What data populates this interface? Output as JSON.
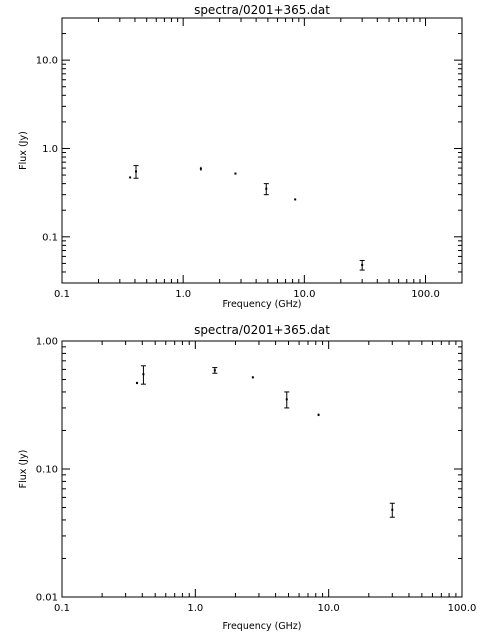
{
  "chart_data": [
    {
      "type": "scatter",
      "title": "spectra/0201+365.dat",
      "xlabel": "Frequency (GHz)",
      "ylabel": "Flux (Jy)",
      "xscale": "log",
      "yscale": "log",
      "xlim": [
        0.1,
        200
      ],
      "ylim": [
        0.03,
        30
      ],
      "xticks": [
        {
          "value": 0.1,
          "label": "0.1"
        },
        {
          "value": 1,
          "label": "1.0"
        },
        {
          "value": 10,
          "label": "10.0"
        },
        {
          "value": 100,
          "label": "100.0"
        }
      ],
      "yticks": [
        {
          "value": 0.1,
          "label": "0.1"
        },
        {
          "value": 1,
          "label": "1.0"
        },
        {
          "value": 10,
          "label": "10.0"
        }
      ],
      "grid": false,
      "points": [
        {
          "x": 0.365,
          "y": 0.47,
          "err": 0.01
        },
        {
          "x": 0.408,
          "y": 0.55,
          "err": 0.09
        },
        {
          "x": 1.4,
          "y": 0.59,
          "err": 0.03
        },
        {
          "x": 2.7,
          "y": 0.52,
          "err": 0.01
        },
        {
          "x": 4.85,
          "y": 0.35,
          "err": 0.05
        },
        {
          "x": 8.4,
          "y": 0.265,
          "err": 0.006
        },
        {
          "x": 30,
          "y": 0.048,
          "err": 0.006
        }
      ]
    },
    {
      "type": "scatter",
      "title": "spectra/0201+365.dat",
      "xlabel": "Frequency (GHz)",
      "ylabel": "Flux (Jy)",
      "xscale": "log",
      "yscale": "log",
      "xlim": [
        0.1,
        100
      ],
      "ylim": [
        0.01,
        1
      ],
      "xticks": [
        {
          "value": 0.1,
          "label": "0.1"
        },
        {
          "value": 1,
          "label": "1.0"
        },
        {
          "value": 10,
          "label": "10.0"
        },
        {
          "value": 100,
          "label": "100.0"
        }
      ],
      "yticks": [
        {
          "value": 0.01,
          "label": "0.01"
        },
        {
          "value": 0.1,
          "label": "0.10"
        },
        {
          "value": 1,
          "label": "1.00"
        }
      ],
      "grid": false,
      "points": [
        {
          "x": 0.365,
          "y": 0.47,
          "err": 0.01
        },
        {
          "x": 0.408,
          "y": 0.55,
          "err": 0.09
        },
        {
          "x": 1.4,
          "y": 0.59,
          "err": 0.03
        },
        {
          "x": 2.7,
          "y": 0.52,
          "err": 0.01
        },
        {
          "x": 4.85,
          "y": 0.35,
          "err": 0.05
        },
        {
          "x": 8.4,
          "y": 0.265,
          "err": 0.006
        },
        {
          "x": 30,
          "y": 0.048,
          "err": 0.006
        }
      ]
    }
  ]
}
